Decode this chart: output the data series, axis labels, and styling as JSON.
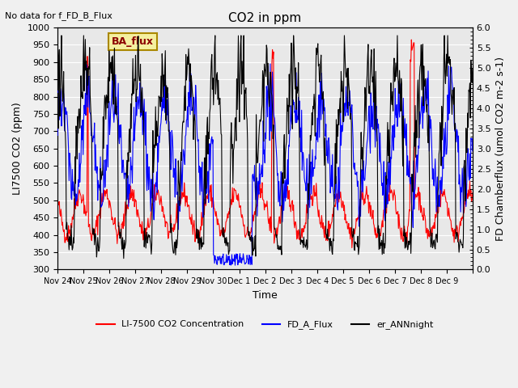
{
  "title": "CO2 in ppm",
  "xlabel": "Time",
  "ylabel_left": "LI7500 CO2 (ppm)",
  "ylabel_right": "FD Chamberflux (umol CO2 m-2 s-1)",
  "ylim_left": [
    300,
    1000
  ],
  "ylim_right": [
    0.0,
    6.0
  ],
  "yticks_left": [
    300,
    350,
    400,
    450,
    500,
    550,
    600,
    650,
    700,
    750,
    800,
    850,
    900,
    950,
    1000
  ],
  "yticks_right": [
    0.0,
    0.5,
    1.0,
    1.5,
    2.0,
    2.5,
    3.0,
    3.5,
    4.0,
    4.5,
    5.0,
    5.5,
    6.0
  ],
  "annotation_top_left": "No data for f_FD_B_Flux",
  "annotation_box": "BA_flux",
  "legend_entries": [
    "LI-7500 CO2 Concentration",
    "FD_A_Flux",
    "er_ANNnight"
  ],
  "line_colors": [
    "red",
    "blue",
    "black"
  ],
  "background_color": "#f0f0f0",
  "plot_bg_color": "#e8e8e8",
  "start_day": 0,
  "n_days": 16,
  "xtick_labels": [
    "Nov 24",
    "Nov 25",
    "Nov 26",
    "Nov 27",
    "Nov 28",
    "Nov 29",
    "Nov 30",
    "Dec 1",
    "Dec 2",
    "Dec 3",
    "Dec 4",
    "Dec 5",
    "Dec 6",
    "Dec 7",
    "Dec 8",
    "Dec 9"
  ]
}
